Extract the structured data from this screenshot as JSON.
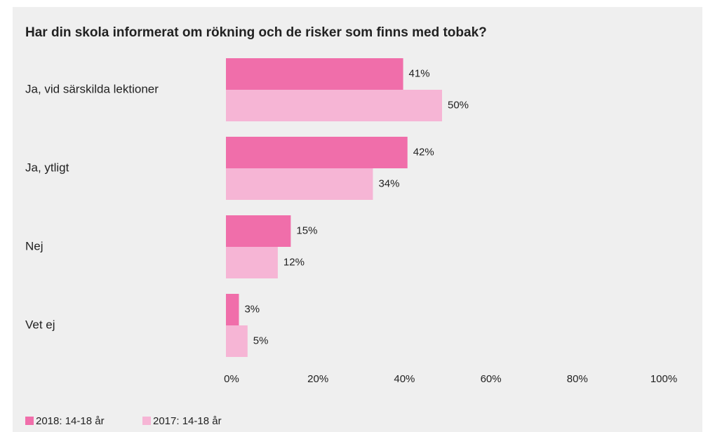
{
  "chart_data": {
    "type": "bar",
    "orientation": "horizontal",
    "title": "Har din skola informerat om rökning och de risker som finns med tobak?",
    "categories": [
      "Ja, vid särskilda lektioner",
      "Ja, ytligt",
      "Nej",
      "Vet ej"
    ],
    "series": [
      {
        "name": "2018: 14-18 år",
        "color": "#f06eaa",
        "values": [
          41,
          42,
          15,
          3
        ],
        "value_labels": [
          "41%",
          "42%",
          "15%",
          "3%"
        ]
      },
      {
        "name": "2017: 14-18 år",
        "color": "#f6b5d5",
        "values": [
          50,
          34,
          12,
          5
        ],
        "value_labels": [
          "50%",
          "34%",
          "12%",
          "5%"
        ]
      }
    ],
    "xlim": [
      0,
      100
    ],
    "xticks": [
      {
        "value": 0,
        "label": "0%"
      },
      {
        "value": 20,
        "label": "20%"
      },
      {
        "value": 40,
        "label": "40%"
      },
      {
        "value": 60,
        "label": "60%"
      },
      {
        "value": 80,
        "label": "80%"
      },
      {
        "value": 100,
        "label": "100%"
      }
    ],
    "grid": false,
    "legend": "bottom-left"
  }
}
